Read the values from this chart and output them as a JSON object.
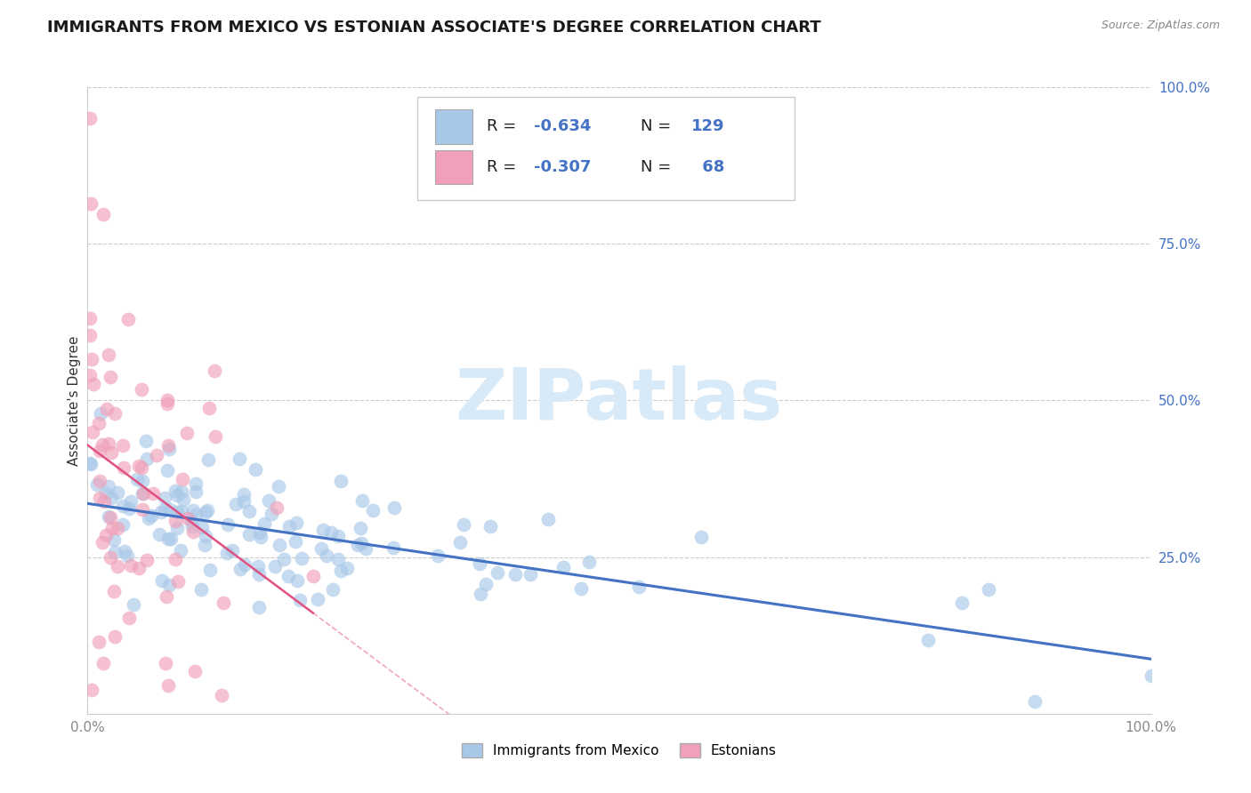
{
  "title": "IMMIGRANTS FROM MEXICO VS ESTONIAN ASSOCIATE'S DEGREE CORRELATION CHART",
  "source_text": "Source: ZipAtlas.com",
  "ylabel": "Associate's Degree",
  "legend_r1": "-0.634",
  "legend_n1": "129",
  "legend_r2": "-0.307",
  "legend_n2": " 68",
  "legend_label1": "Immigrants from Mexico",
  "legend_label2": "Estonians",
  "blue_color": "#a8c8e8",
  "pink_color": "#f0a0b8",
  "blue_line_color": "#4472c4",
  "pink_line_color": "#e05080",
  "watermark_color": "#d8eaf8",
  "title_fontsize": 13,
  "axis_label_color": "#4472c4",
  "tick_color": "#888888"
}
